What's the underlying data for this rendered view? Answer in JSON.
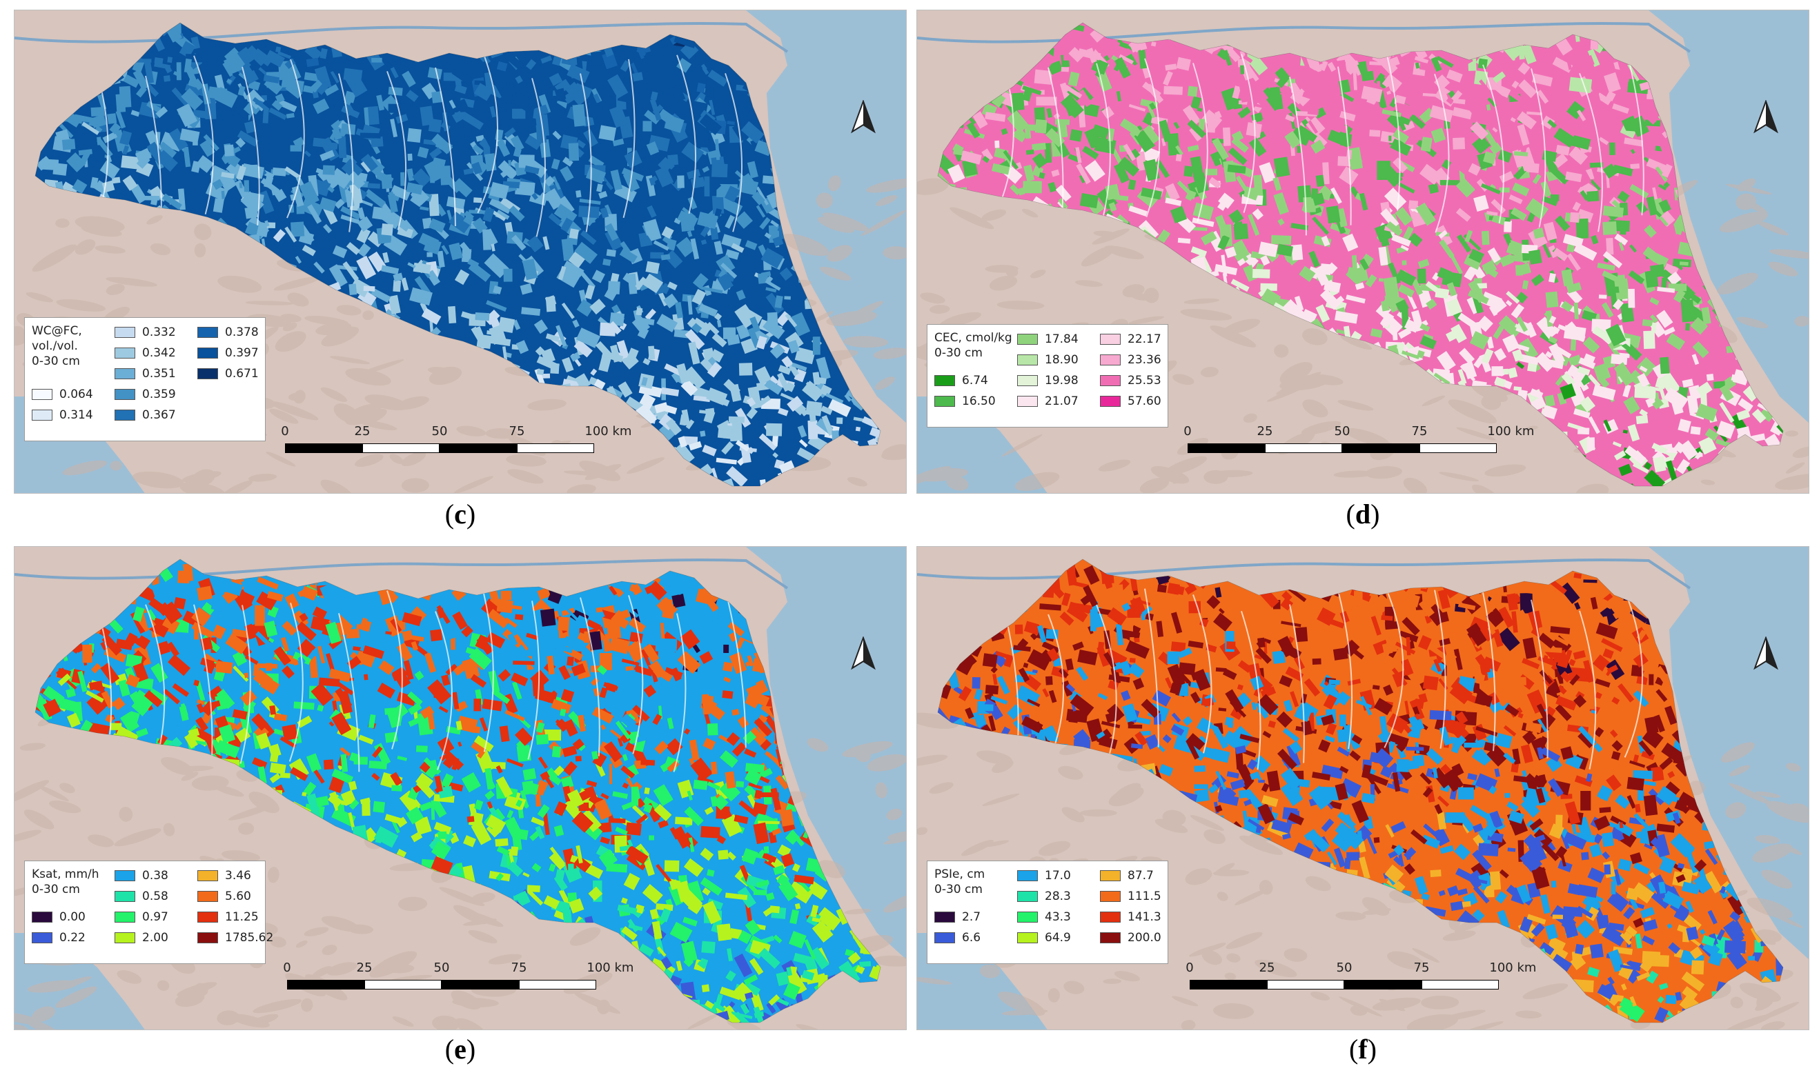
{
  "panels": [
    {
      "id": "c",
      "caption_open": "(",
      "caption_letter": "c",
      "caption_close": ")",
      "legend_title": "WC@FC,\nvol./vol.\n0-30 cm",
      "legend_columns": [
        [
          {
            "label": "",
            "color": ""
          },
          {
            "label": "",
            "color": ""
          },
          {
            "label": "",
            "color": ""
          },
          {
            "label": "0.064",
            "color": "#f7fbff"
          },
          {
            "label": "0.314",
            "color": "#deebf7"
          }
        ],
        [
          {
            "label": "0.332",
            "color": "#c6dbef"
          },
          {
            "label": "0.342",
            "color": "#9ecae1"
          },
          {
            "label": "0.351",
            "color": "#6baed6"
          },
          {
            "label": "0.359",
            "color": "#4292c6"
          },
          {
            "label": "0.367",
            "color": "#2171b5"
          }
        ],
        [
          {
            "label": "0.378",
            "color": "#1664ae"
          },
          {
            "label": "0.397",
            "color": "#08519c"
          },
          {
            "label": "0.671",
            "color": "#08306b"
          }
        ]
      ],
      "map_colors": [
        "#08519c",
        "#2171b5",
        "#4292c6",
        "#6baed6",
        "#9ecae1",
        "#c6dbef",
        "#deebf7",
        "#08306b",
        "#1664ae"
      ],
      "scale_labels": [
        "0",
        "25",
        "50",
        "75",
        "100 km"
      ]
    },
    {
      "id": "d",
      "caption_open": "(",
      "caption_letter": "d",
      "caption_close": ")",
      "legend_title": "CEC, cmol/kg\n0-30 cm",
      "legend_columns": [
        [
          {
            "label": "",
            "color": ""
          },
          {
            "label": "",
            "color": ""
          },
          {
            "label": "6.74",
            "color": "#1a9e1a"
          },
          {
            "label": "16.50",
            "color": "#4cba4c"
          }
        ],
        [
          {
            "label": "17.84",
            "color": "#8fd47d"
          },
          {
            "label": "18.90",
            "color": "#b8e6a8"
          },
          {
            "label": "19.98",
            "color": "#e2f3d8"
          },
          {
            "label": "21.07",
            "color": "#fbe6ef"
          }
        ],
        [
          {
            "label": "22.17",
            "color": "#f9cfe2"
          },
          {
            "label": "23.36",
            "color": "#f7a9cf"
          },
          {
            "label": "25.53",
            "color": "#f06db4"
          },
          {
            "label": "57.60",
            "color": "#e8289a"
          }
        ]
      ],
      "map_colors": [
        "#f06db4",
        "#f7a9cf",
        "#4cba4c",
        "#8fd47d",
        "#fbe6ef",
        "#e2f3d8",
        "#1a9e1a",
        "#e8289a",
        "#b8e6a8"
      ],
      "scale_labels": [
        "0",
        "25",
        "50",
        "75",
        "100 km"
      ]
    },
    {
      "id": "e",
      "caption_open": "(",
      "caption_letter": "e",
      "caption_close": ")",
      "legend_title": "Ksat, mm/h\n0-30 cm",
      "legend_columns": [
        [
          {
            "label": "",
            "color": ""
          },
          {
            "label": "",
            "color": ""
          },
          {
            "label": "0.00",
            "color": "#2a0a3d"
          },
          {
            "label": "0.22",
            "color": "#3a5bd9"
          }
        ],
        [
          {
            "label": "0.38",
            "color": "#1aa3e8"
          },
          {
            "label": "0.58",
            "color": "#1de3a8"
          },
          {
            "label": "0.97",
            "color": "#23f26a"
          },
          {
            "label": "2.00",
            "color": "#b6f21e"
          }
        ],
        [
          {
            "label": "3.46",
            "color": "#f4b22a"
          },
          {
            "label": "5.60",
            "color": "#f26b1a"
          },
          {
            "label": "11.25",
            "color": "#e3300f"
          },
          {
            "label": "1785.62",
            "color": "#8a0e0e"
          }
        ]
      ],
      "map_colors": [
        "#1aa3e8",
        "#f26b1a",
        "#e3300f",
        "#23f26a",
        "#b6f21e",
        "#1de3a8",
        "#3a5bd9",
        "#f4b22a",
        "#2a0a3d"
      ],
      "scale_labels": [
        "0",
        "25",
        "50",
        "75",
        "100 km"
      ]
    },
    {
      "id": "f",
      "caption_open": "(",
      "caption_letter": "f",
      "caption_close": ")",
      "legend_title": "PSIe, cm\n0-30 cm",
      "legend_columns": [
        [
          {
            "label": "",
            "color": ""
          },
          {
            "label": "",
            "color": ""
          },
          {
            "label": "2.7",
            "color": "#2a0a3d"
          },
          {
            "label": "6.6",
            "color": "#3a5bd9"
          }
        ],
        [
          {
            "label": "17.0",
            "color": "#1aa3e8"
          },
          {
            "label": "28.3",
            "color": "#1de3a8"
          },
          {
            "label": "43.3",
            "color": "#23f26a"
          },
          {
            "label": "64.9",
            "color": "#b6f21e"
          }
        ],
        [
          {
            "label": "87.7",
            "color": "#f4b22a"
          },
          {
            "label": "111.5",
            "color": "#f26b1a"
          },
          {
            "label": "141.3",
            "color": "#e3300f"
          },
          {
            "label": "200.0",
            "color": "#8a0e0e"
          }
        ]
      ],
      "map_colors": [
        "#f26b1a",
        "#e3300f",
        "#8a0e0e",
        "#1aa3e8",
        "#3a5bd9",
        "#f4b22a",
        "#1de3a8",
        "#23f26a",
        "#2a0a3d"
      ],
      "scale_labels": [
        "0",
        "25",
        "50",
        "75",
        "100 km"
      ]
    }
  ],
  "colors": {
    "sea": "#9dbfd6",
    "land": "#d8c5bd",
    "hills": "#c9b3a8",
    "river": "#7fa6c8"
  }
}
